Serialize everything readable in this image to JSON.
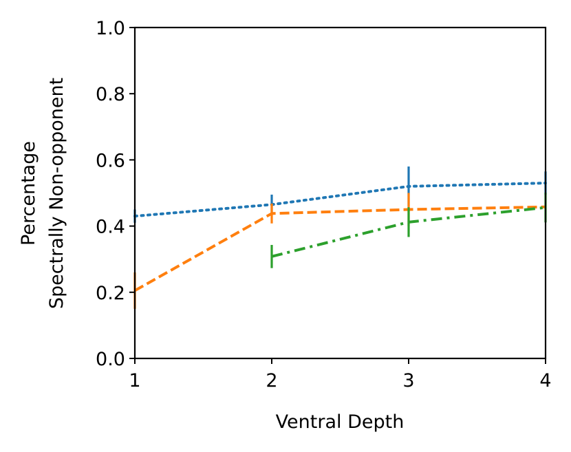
{
  "chart_data": {
    "type": "line",
    "title": "",
    "xlabel": "Ventral Depth",
    "ylabel_lines": [
      "Percentage",
      "Spectrally Non-opponent"
    ],
    "xlim": [
      1,
      4
    ],
    "ylim": [
      0.0,
      1.0
    ],
    "x_ticks": [
      1,
      2,
      3,
      4
    ],
    "x_tick_labels": [
      "1",
      "2",
      "3",
      "4"
    ],
    "y_ticks": [
      0.0,
      0.2,
      0.4,
      0.6,
      0.8,
      1.0
    ],
    "y_tick_labels": [
      "0.0",
      "0.2",
      "0.4",
      "0.6",
      "0.8",
      "1.0"
    ],
    "grid": false,
    "legend": "none",
    "series": [
      {
        "name": "blue",
        "color": "#1f77b4",
        "linestyle": "dotted",
        "x": [
          1,
          2,
          3,
          4
        ],
        "values": [
          0.43,
          0.465,
          0.52,
          0.53
        ],
        "error": [
          0.02,
          0.03,
          0.06,
          0.035
        ]
      },
      {
        "name": "orange",
        "color": "#ff7f0e",
        "linestyle": "dashed",
        "x": [
          1,
          2,
          3,
          4
        ],
        "values": [
          0.205,
          0.438,
          0.45,
          0.458
        ],
        "error": [
          0.055,
          0.03,
          0.05,
          0.0
        ]
      },
      {
        "name": "green",
        "color": "#2ca02c",
        "linestyle": "dashdot",
        "x": [
          2,
          3,
          4
        ],
        "values": [
          0.308,
          0.412,
          0.456
        ],
        "error": [
          0.035,
          0.045,
          0.045
        ]
      }
    ]
  }
}
